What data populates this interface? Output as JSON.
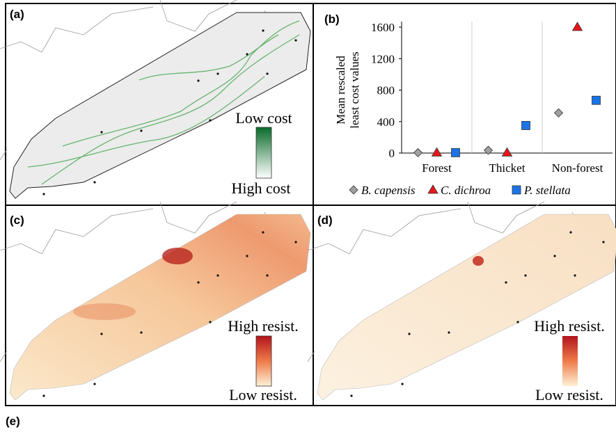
{
  "panel_labels": [
    "(a)",
    "(b)",
    "(c)",
    "(d)",
    "(e)"
  ],
  "map_legends": {
    "a": {
      "top": "Low cost",
      "bottom": "High cost"
    },
    "c": {
      "top": "High resist.",
      "bottom": "Low resist."
    },
    "d": {
      "top": "High resist.",
      "bottom": "Low resist."
    }
  },
  "chart_data": {
    "type": "scatter",
    "ylabel": [
      "Mean rescaled",
      "least cost values"
    ],
    "categories": [
      "Forest",
      "Thicket",
      "Non-forest"
    ],
    "series": [
      {
        "name": "B. capensis",
        "color": "#a0a0a0",
        "marker": "diamond",
        "values": [
          5,
          35,
          510
        ]
      },
      {
        "name": "C. dichroa",
        "color": "#e8151b",
        "marker": "triangle",
        "values": [
          5,
          5,
          1600
        ]
      },
      {
        "name": "P. stellata",
        "color": "#1a74e8",
        "marker": "square",
        "values": [
          5,
          350,
          670
        ]
      }
    ],
    "ylim": [
      0,
      1600
    ],
    "yticks": [
      0,
      400,
      800,
      1200,
      1600
    ],
    "separators": true
  }
}
